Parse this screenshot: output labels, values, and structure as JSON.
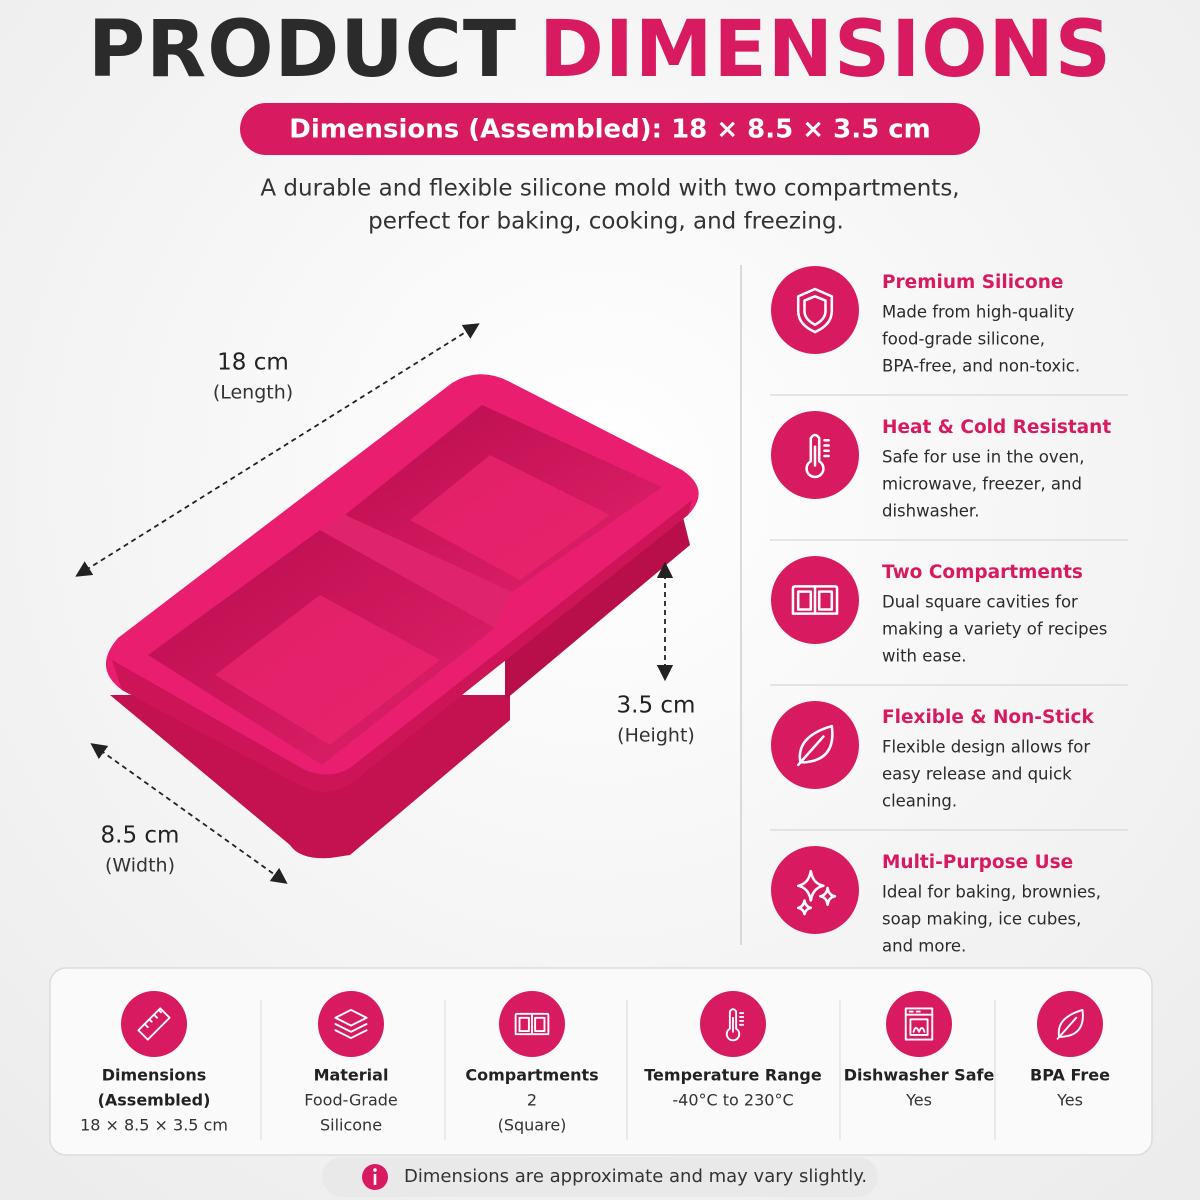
{
  "title": {
    "part1": "PRODUCT",
    "part2": "DIMENSIONS"
  },
  "badge": "Dimensions (Assembled): 18 × 8.5 × 3.5 cm",
  "description": [
    "A durable and flexible silicone mold with two compartments,",
    "perfect for baking, cooking, and freezing."
  ],
  "dimension_labels": {
    "length": {
      "value": "18 cm",
      "label": "(Length)"
    },
    "height": {
      "value": "3.5 cm",
      "label": "(Height)"
    },
    "width": {
      "value": "8.5 cm",
      "label": "(Width)"
    }
  },
  "features": [
    {
      "title": "Premium Silicone",
      "lines": [
        "Made from high-quality",
        "food-grade silicone,",
        "BPA-free, and non-toxic."
      ]
    },
    {
      "title": "Heat & Cold Resistant",
      "lines": [
        "Safe for use in the oven,",
        "microwave, freezer, and",
        "dishwasher."
      ]
    },
    {
      "title": "Two Compartments",
      "lines": [
        "Dual square cavities for",
        "making a variety of recipes",
        "with ease."
      ]
    },
    {
      "title": "Flexible & Non-Stick",
      "lines": [
        "Flexible design allows for",
        "easy release and quick",
        "cleaning."
      ]
    },
    {
      "title": "Multi-Purpose Use",
      "lines": [
        "Ideal for baking, brownies,",
        "soap making, ice cubes,",
        "and more."
      ]
    }
  ],
  "specs": [
    {
      "title": [
        "Dimensions",
        "(Assembled)"
      ],
      "value": [
        "18 × 8.5 × 3.5 cm"
      ]
    },
    {
      "title": [
        "Material"
      ],
      "value": [
        "Food-Grade",
        "Silicone"
      ]
    },
    {
      "title": [
        "Compartments"
      ],
      "value": [
        "2",
        "(Square)"
      ]
    },
    {
      "title": [
        "Temperature Range"
      ],
      "value": [
        "-40°C to 230°C"
      ]
    },
    {
      "title": [
        "Dishwasher Safe"
      ],
      "value": [
        "Yes"
      ]
    },
    {
      "title": [
        "BPA Free"
      ],
      "value": [
        "Yes"
      ]
    }
  ],
  "note": "Dimensions are approximate and may vary slightly."
}
